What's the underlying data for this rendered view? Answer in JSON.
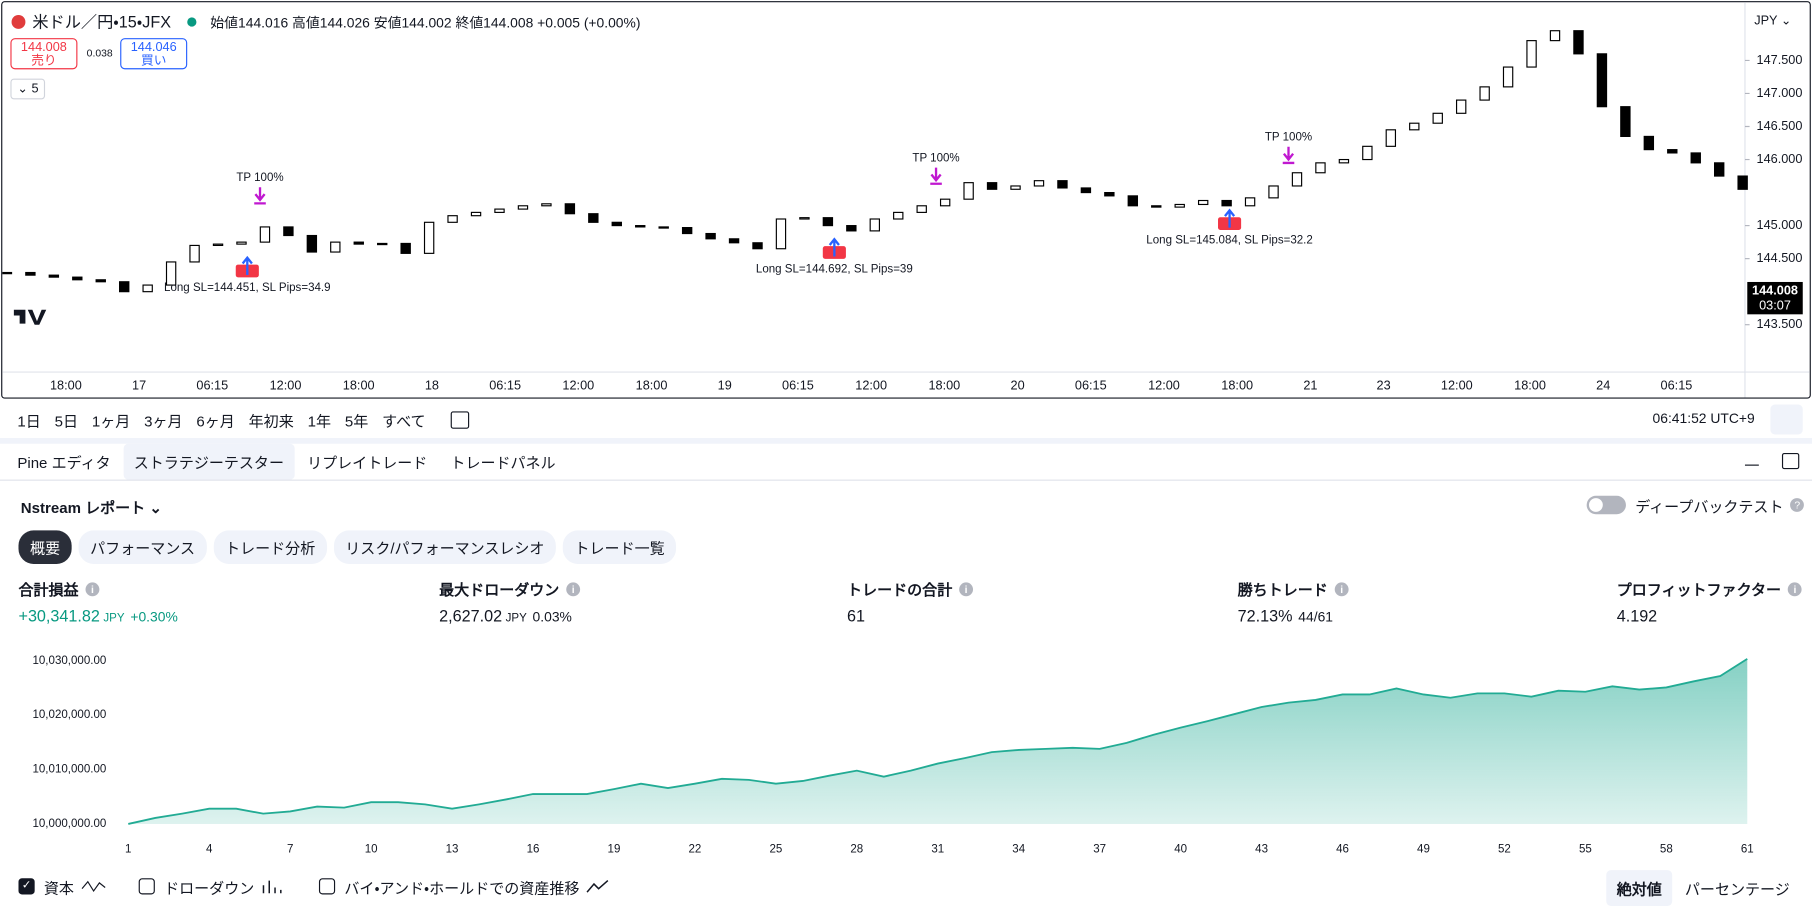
{
  "header": {
    "symbol": "米ドル／円・15・JFX",
    "ohlc": "始値144.016 高値144.026 安値144.002 終値144.008 +0.005 (+0.00%)",
    "sell_price": "144.008",
    "sell_label": "売り",
    "spread": "0.038",
    "buy_price": "144.046",
    "buy_label": "買い",
    "indicator_count": "5",
    "currency": "JPY"
  },
  "chart_data": [
    {
      "type": "candlestick",
      "values": [
        144.29,
        144.25,
        144.22,
        144.18,
        144.15,
        144.0,
        144.1,
        144.45,
        144.7,
        144.72,
        144.75,
        144.98,
        144.85,
        144.6,
        144.75,
        144.72,
        144.73,
        144.58,
        145.05,
        145.15,
        145.2,
        145.25,
        145.3,
        145.33,
        145.18,
        145.05,
        145.0,
        144.98,
        144.97,
        144.88,
        144.8,
        144.74,
        144.65,
        145.1,
        145.12,
        145.0,
        144.92,
        145.1,
        145.2,
        145.3,
        145.4,
        145.65,
        145.55,
        145.6,
        145.68,
        145.57,
        145.5,
        145.45,
        145.3,
        145.28,
        145.32,
        145.38,
        145.3,
        145.42,
        145.6,
        145.8,
        145.95,
        146.0,
        146.2,
        146.45,
        146.55,
        146.7,
        146.9,
        147.1,
        147.4,
        147.8,
        147.95,
        147.6,
        146.8,
        146.35,
        146.15,
        146.1,
        145.95,
        145.75,
        145.55
      ],
      "up_color": "#ffffff",
      "down_color": "#000000",
      "ylim": [
        142.8,
        148.31
      ],
      "yticks": [
        {
          "value": 143.5,
          "label": "143.500"
        },
        {
          "value": 144.5,
          "label": "144.500"
        },
        {
          "value": 145,
          "label": "145.000"
        },
        {
          "value": 146,
          "label": "146.000"
        },
        {
          "value": 146.5,
          "label": "146.500"
        },
        {
          "value": 147,
          "label": "147.000"
        },
        {
          "value": 147.5,
          "label": "147.500"
        }
      ],
      "grid": false,
      "time_labels": [
        "18:00",
        "17",
        "06:15",
        "12:00",
        "18:00",
        "18",
        "06:15",
        "12:00",
        "18:00",
        "19",
        "06:15",
        "12:00",
        "18:00",
        "20",
        "06:15",
        "12:00",
        "18:00",
        "21",
        "23",
        "12:00",
        "18:00",
        "24",
        "06:15"
      ],
      "last_price": "144.008",
      "countdown": "03:07",
      "annotations": [
        "TP 100%",
        "TP 100%",
        "TP 100%",
        "Long SL=144.451, SL Pips=34.9",
        "Long SL=144.692, SL Pips=39",
        "Long SL=145.084, SL Pips=32.2"
      ]
    },
    {
      "type": "area",
      "series": [
        {
          "name": "資本",
          "color": "#22ab94",
          "values": [
            10000000,
            10001100,
            10001900,
            10002800,
            10002800,
            10001900,
            10002300,
            10003200,
            10003000,
            10004000,
            10004000,
            10003600,
            10002800,
            10003600,
            10004500,
            10005500,
            10005500,
            10005500,
            10006400,
            10007400,
            10006600,
            10007400,
            10008300,
            10008100,
            10007400,
            10007900,
            10008900,
            10009800,
            10008700,
            10009800,
            10011100,
            10012100,
            10013200,
            10013600,
            10013800,
            10014000,
            10013800,
            10014900,
            10016400,
            10017700,
            10018900,
            10020200,
            10021500,
            10022300,
            10022800,
            10023800,
            10023800,
            10024900,
            10023800,
            10023200,
            10024000,
            10024000,
            10023400,
            10024500,
            10024300,
            10025300,
            10024700,
            10025100,
            10026200,
            10027200,
            10030341.82
          ]
        }
      ],
      "xlim": [
        1,
        61
      ],
      "xticks": [
        1,
        4,
        7,
        10,
        13,
        16,
        19,
        22,
        25,
        28,
        31,
        34,
        37,
        40,
        43,
        46,
        49,
        52,
        55,
        58,
        61
      ],
      "ylim": [
        10000000,
        10032500
      ],
      "yticks": [
        {
          "value": 10000000,
          "label": "10,000,000.00"
        },
        {
          "value": 10010000,
          "label": "10,010,000.00"
        },
        {
          "value": 10020000,
          "label": "10,020,000.00"
        },
        {
          "value": 10030000,
          "label": "10,030,000.00"
        }
      ]
    }
  ],
  "toolbar": {
    "ranges": [
      "1日",
      "5日",
      "1ヶ月",
      "3ヶ月",
      "6ヶ月",
      "年初来",
      "1年",
      "5年",
      "すべて"
    ],
    "clock": "06:41:52 UTC+9"
  },
  "tabs": [
    "Pine エディタ",
    "ストラテジーテスター",
    "リプレイトレード",
    "トレードパネル"
  ],
  "active_tab": 1,
  "report": {
    "title": "Nstream レポート",
    "deep_backtest": "ディープバックテスト",
    "subtabs": [
      "概要",
      "パフォーマンス",
      "トレード分析",
      "リスク/パフォーマンスレシオ",
      "トレード一覧"
    ],
    "active_subtab": 0,
    "metrics": [
      {
        "label": "合計損益",
        "value": "+30,341.82",
        "unit": "JPY",
        "extra": "+0.30%"
      },
      {
        "label": "最大ドローダウン",
        "value": "2,627.02",
        "unit": "JPY",
        "extra": "0.03%"
      },
      {
        "label": "トレードの合計",
        "value": "61"
      },
      {
        "label": "勝ちトレード",
        "value": "72.13%",
        "extra": "44/61"
      },
      {
        "label": "プロフィットファクター",
        "value": "4.192"
      }
    ]
  },
  "footer": {
    "options": [
      "ドローダウン",
      "バイ・アンド・ホールドでの資産推移"
    ],
    "scale_modes": [
      "絶対値",
      "パーセンテージ"
    ],
    "active_scale": 0
  }
}
